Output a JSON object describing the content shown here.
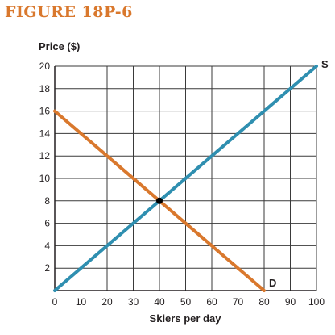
{
  "figure": {
    "title": "FIGURE 18P-6"
  },
  "colors": {
    "title": "#d9782d",
    "supply": "#2f8fb0",
    "demand": "#d9782d",
    "grid": "#3a3a3a",
    "point": "#000000"
  },
  "chart_data": {
    "type": "line",
    "ylabel": "Price ($)",
    "xlabel": "Skiers per day",
    "xlim": [
      0,
      100
    ],
    "ylim": [
      0,
      20
    ],
    "x_ticks": [
      0,
      10,
      20,
      30,
      40,
      50,
      60,
      70,
      80,
      90,
      100
    ],
    "y_ticks": [
      2,
      4,
      6,
      8,
      10,
      12,
      14,
      16,
      18,
      20
    ],
    "grid": true,
    "series": [
      {
        "name": "S",
        "color": "#2f8fb0",
        "points": [
          [
            0,
            0
          ],
          [
            100,
            20
          ]
        ]
      },
      {
        "name": "D",
        "color": "#d9782d",
        "points": [
          [
            0,
            16
          ],
          [
            80,
            0
          ]
        ]
      }
    ],
    "equilibrium": {
      "x": 40,
      "y": 8
    }
  }
}
